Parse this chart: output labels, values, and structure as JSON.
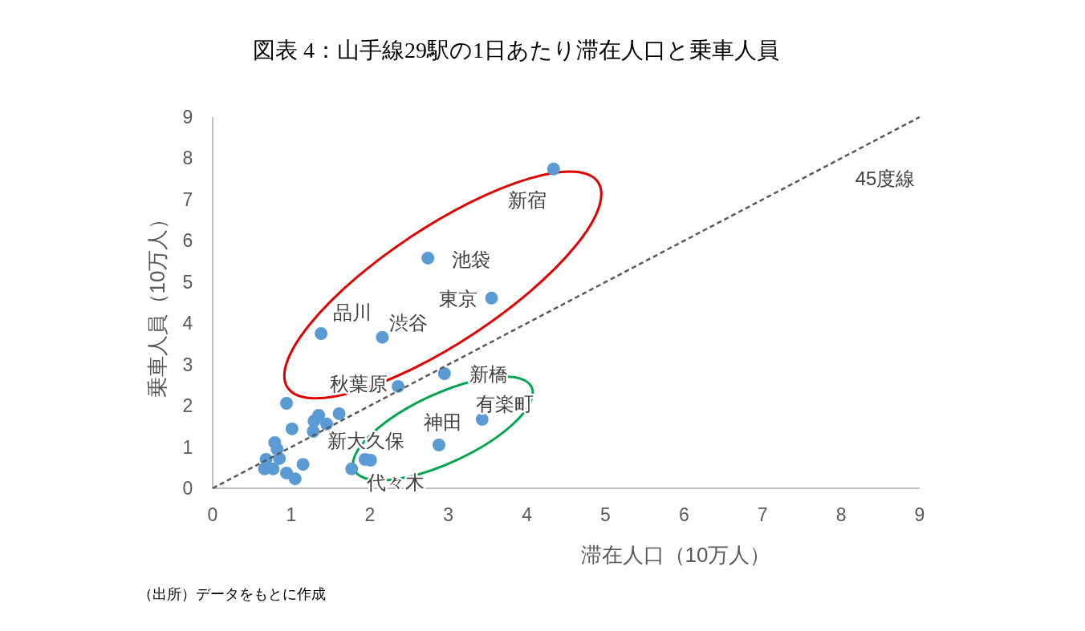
{
  "chart_data": {
    "type": "scatter",
    "title": "図表 4：山手線29駅の1日あたり滞在人口と乗車人員",
    "xlabel": "滞在人口（10万人）",
    "ylabel": "乗車人員（10万人）",
    "xlim": [
      0,
      9
    ],
    "ylim": [
      0,
      9
    ],
    "xticks": [
      0,
      1,
      2,
      3,
      4,
      5,
      6,
      7,
      8,
      9
    ],
    "yticks": [
      0,
      1,
      2,
      3,
      4,
      5,
      6,
      7,
      8,
      9
    ],
    "grid": false,
    "marker": "circle",
    "series": [
      {
        "color": "#5b9bd5",
        "x": [
          4.34,
          2.74,
          3.55,
          1.38,
          2.16,
          2.95,
          2.36,
          3.43,
          2.88,
          1.77,
          2.01,
          1.94,
          0.94,
          1.35,
          1.61,
          1.29,
          1.45,
          1.01,
          1.28,
          0.79,
          0.82,
          0.85,
          0.68,
          0.66,
          0.77,
          1.15,
          0.94,
          1.05
        ],
        "values": [
          7.74,
          5.58,
          4.61,
          3.75,
          3.66,
          2.78,
          2.47,
          1.67,
          1.05,
          0.47,
          0.68,
          0.7,
          2.06,
          1.77,
          1.81,
          1.63,
          1.56,
          1.44,
          1.38,
          1.11,
          0.95,
          0.72,
          0.7,
          0.47,
          0.47,
          0.58,
          0.37,
          0.23
        ]
      },
      {
        "type": "line",
        "name": "45度線",
        "color": "#595959",
        "line_style": "dashed",
        "marker": "none",
        "x": [
          0,
          9
        ],
        "values": [
          0,
          9
        ]
      }
    ],
    "annotations": [
      {
        "text": "新宿",
        "x": 4.34,
        "y": 7.74
      },
      {
        "text": "池袋",
        "x": 2.74,
        "y": 5.58
      },
      {
        "text": "東京",
        "x": 3.55,
        "y": 4.61
      },
      {
        "text": "品川",
        "x": 1.38,
        "y": 3.75
      },
      {
        "text": "渋谷",
        "x": 2.16,
        "y": 3.66
      },
      {
        "text": "新橋",
        "x": 2.95,
        "y": 2.78
      },
      {
        "text": "秋葉原",
        "x": 2.36,
        "y": 2.47
      },
      {
        "text": "有楽町",
        "x": 3.43,
        "y": 1.67
      },
      {
        "text": "神田",
        "x": 2.88,
        "y": 1.05
      },
      {
        "text": "新大久保",
        "x": 1.77,
        "y": 0.47
      },
      {
        "text": "代々木",
        "x": 2.01,
        "y": 0.68
      },
      "（出所）データをもとに作成"
    ]
  }
}
